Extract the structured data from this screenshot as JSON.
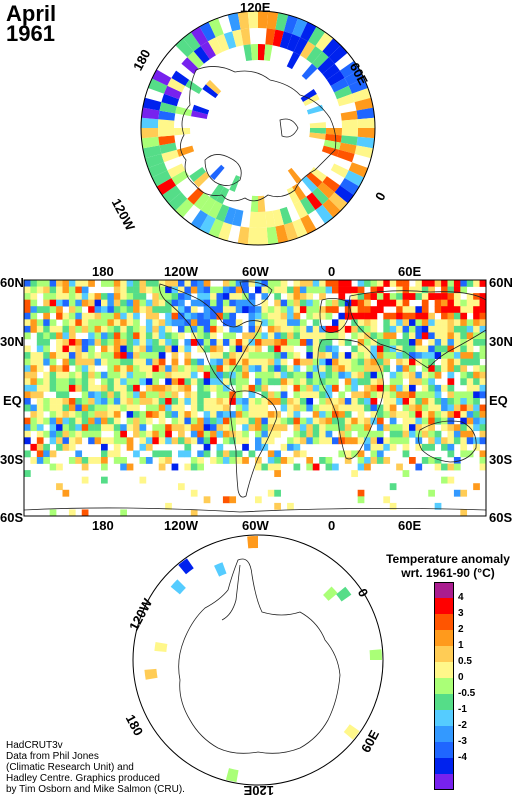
{
  "title": {
    "month": "April",
    "year": "1961"
  },
  "north_polar": {
    "labels": {
      "top": "120E",
      "upper_left": "180",
      "upper_right": "60E",
      "left": "120W",
      "right": "0"
    }
  },
  "equirect": {
    "top_lon_labels": [
      "180",
      "120W",
      "60W",
      "0",
      "60E"
    ],
    "bottom_lon_labels": [
      "180",
      "120W",
      "60W",
      "0",
      "60E"
    ],
    "lat_labels": [
      "60N",
      "30N",
      "EQ",
      "30S",
      "60S"
    ]
  },
  "south_polar": {
    "labels": {
      "upper_left": "120W",
      "right": "0",
      "lower_left": "180",
      "lower_right": "60E",
      "bottom": "120E"
    }
  },
  "legend": {
    "title_line1": "Temperature anomaly",
    "title_line2": "wrt. 1961-90  (°C)",
    "ticks": [
      "4",
      "3",
      "2",
      "1",
      "0.5",
      "0",
      "-0.5",
      "-1",
      "-2",
      "-3",
      "-4"
    ],
    "colors": [
      "#aa1d8f",
      "#ff0000",
      "#ff5500",
      "#ff9a1c",
      "#ffcc55",
      "#fff78a",
      "#aaff77",
      "#55dd88",
      "#55ccff",
      "#3399ff",
      "#1f66ff",
      "#0022ee",
      "#7722ee"
    ]
  },
  "credits": [
    "HadCRUT3v",
    "Data from Phil Jones",
    "(Climatic Research Unit) and",
    "Hadley Centre.  Graphics produced",
    "by Tim Osborn and Mike Salmon (CRU)."
  ]
}
